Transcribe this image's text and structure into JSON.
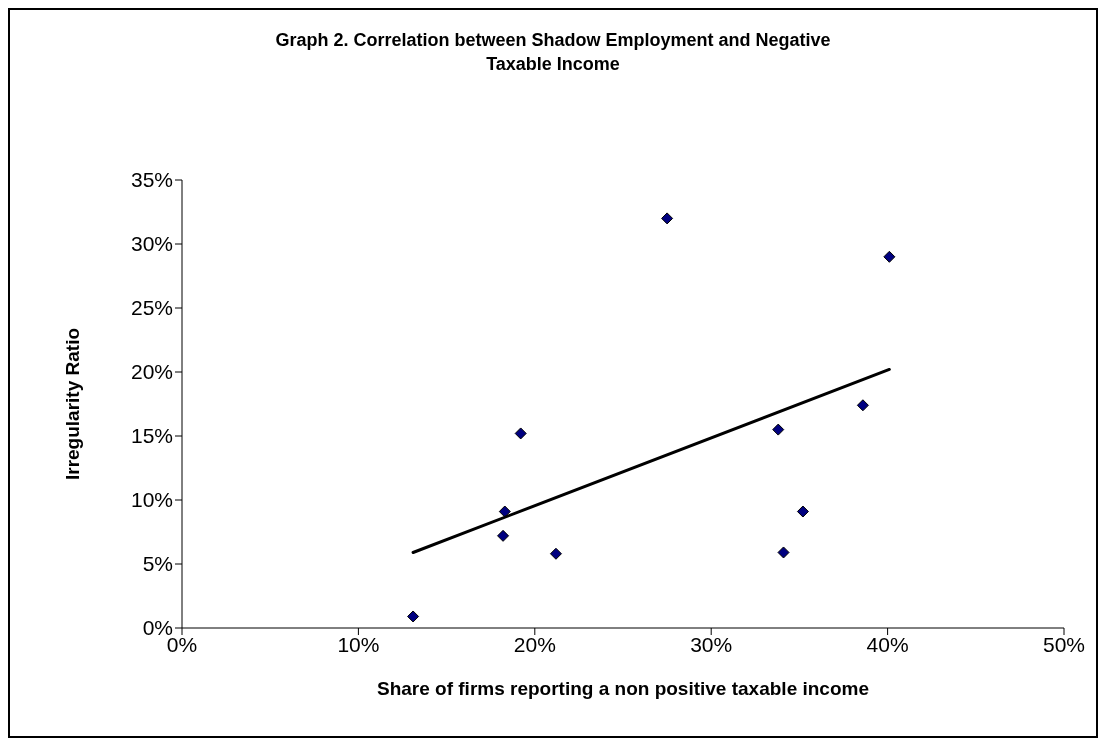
{
  "chart_data": {
    "type": "scatter",
    "title": "Graph 2. Correlation between Shadow Employment and Negative Taxable Income",
    "xlabel": "Share of firms reporting a non positive taxable income",
    "ylabel": "Irregularity Ratio",
    "xlim": [
      0,
      50
    ],
    "xticks": [
      {
        "value": 0,
        "label": "0%"
      },
      {
        "value": 10,
        "label": "10%"
      },
      {
        "value": 20,
        "label": "20%"
      },
      {
        "value": 30,
        "label": "30%"
      },
      {
        "value": 40,
        "label": "40%"
      },
      {
        "value": 50,
        "label": "50%"
      }
    ],
    "ylim": [
      0,
      35
    ],
    "yticks": [
      {
        "value": 0,
        "label": "0%"
      },
      {
        "value": 5,
        "label": "5%"
      },
      {
        "value": 10,
        "label": "10%"
      },
      {
        "value": 15,
        "label": "15%"
      },
      {
        "value": 20,
        "label": "20%"
      },
      {
        "value": 25,
        "label": "25%"
      },
      {
        "value": 30,
        "label": "30%"
      },
      {
        "value": 35,
        "label": "35%"
      }
    ],
    "grid": false,
    "legend": false,
    "marker": "diamond",
    "series": [
      {
        "color": "#000080",
        "x": [
          13.1,
          18.3,
          18.2,
          19.2,
          21.2,
          27.5,
          33.8,
          34.1,
          35.2,
          38.6,
          40.1
        ],
        "values": [
          0.9,
          9.1,
          7.2,
          15.2,
          5.8,
          32.0,
          15.5,
          5.9,
          9.1,
          17.4,
          29.0
        ]
      },
      {
        "type": "line",
        "color": "#000000",
        "marker": "none",
        "line_style": "solid",
        "x": [
          13.1,
          40.1
        ],
        "values": [
          5.9,
          20.2
        ]
      }
    ]
  }
}
